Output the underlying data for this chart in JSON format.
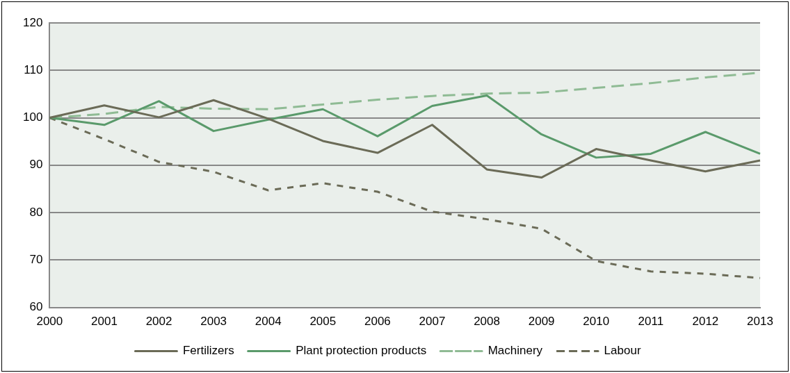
{
  "chart_data": {
    "type": "line",
    "categories": [
      "2000",
      "2001",
      "2002",
      "2003",
      "2004",
      "2005",
      "2006",
      "2007",
      "2008",
      "2009",
      "2010",
      "2011",
      "2012",
      "2013"
    ],
    "ylim": [
      60,
      120
    ],
    "yticks": [
      60,
      70,
      80,
      90,
      100,
      110,
      120
    ],
    "grid": "y",
    "legend": "bottom",
    "marker": "none",
    "series": [
      {
        "name": "Fertilizers",
        "color": "#6b6b57",
        "line_style": "solid",
        "values": [
          100,
          102.6,
          100.1,
          103.7,
          99.8,
          95.1,
          92.6,
          98.5,
          89.1,
          87.4,
          93.4,
          91,
          88.7,
          91
        ]
      },
      {
        "name": "Plant protection products",
        "color": "#5a9a6b",
        "line_style": "solid",
        "values": [
          100,
          98.5,
          103.5,
          97.2,
          99.6,
          101.8,
          96.1,
          102.5,
          104.7,
          96.5,
          91.6,
          92.4,
          97,
          92.4
        ]
      },
      {
        "name": "Machinery",
        "color": "#8fbb94",
        "line_style": "dashed",
        "values": [
          100,
          100.8,
          102.3,
          101.9,
          101.8,
          102.8,
          103.8,
          104.6,
          105.1,
          105.3,
          106.3,
          107.3,
          108.5,
          109.5
        ]
      },
      {
        "name": "Labour",
        "color": "#6b6b57",
        "line_style": "dotted",
        "values": [
          100,
          95.5,
          90.7,
          88.6,
          84.7,
          86.2,
          84.4,
          80.2,
          78.6,
          76.6,
          69.8,
          67.6,
          67.1,
          66.2
        ]
      }
    ]
  }
}
